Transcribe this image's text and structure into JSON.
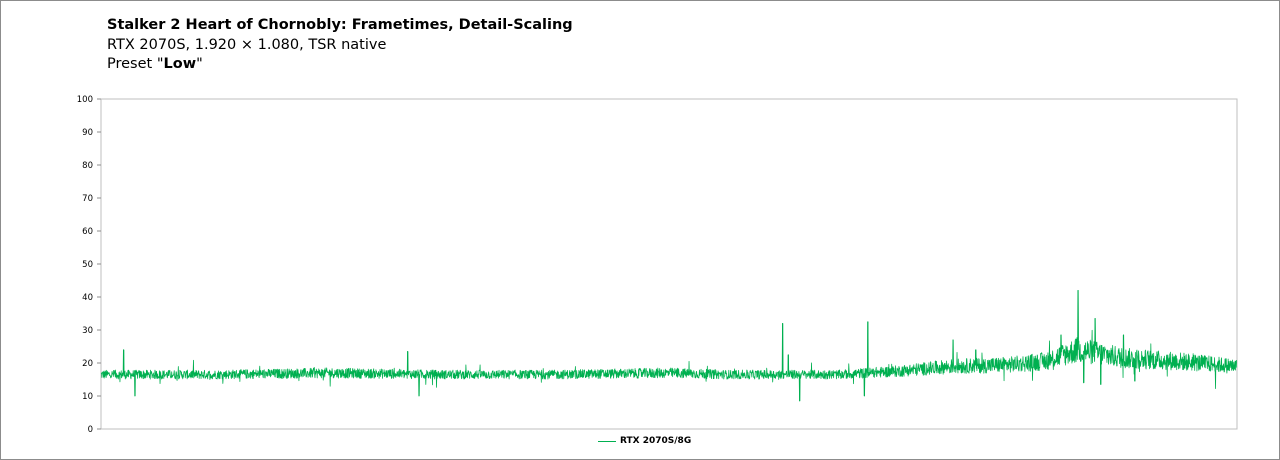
{
  "chart_data": {
    "type": "line",
    "title": "Stalker 2 Heart of Chornobly: Frametimes, Detail-Scaling",
    "subtitle": "RTX 2070S, 1.920 × 1.080, TSR native",
    "preset_prefix": "Preset \"",
    "preset_value": "Low",
    "preset_suffix": "\"",
    "ylim": [
      0,
      100
    ],
    "y_ticks": [
      "0",
      "10",
      "20",
      "30",
      "40",
      "50",
      "60",
      "70",
      "80",
      "90",
      "100"
    ],
    "grid": false,
    "legend_position": "bottom-center",
    "series": [
      {
        "name": "RTX 2070S/8G",
        "color": "#00b050",
        "profile_x": [
          0,
          0.05,
          0.1,
          0.2,
          0.3,
          0.4,
          0.5,
          0.55,
          0.6,
          0.65,
          0.7,
          0.75,
          0.8,
          0.83,
          0.86,
          0.9,
          0.95,
          1.0
        ],
        "profile_y": [
          16.5,
          16.5,
          16.5,
          17,
          16.5,
          16.5,
          17,
          16.5,
          16.5,
          16.5,
          17.5,
          19,
          19.5,
          20.5,
          24,
          21.5,
          20.5,
          19
        ],
        "spikes": [
          {
            "x": 0.02,
            "y": 24
          },
          {
            "x": 0.03,
            "y": 10
          },
          {
            "x": 0.27,
            "y": 23.5
          },
          {
            "x": 0.28,
            "y": 10
          },
          {
            "x": 0.605,
            "y": 22.5
          },
          {
            "x": 0.6,
            "y": 32
          },
          {
            "x": 0.615,
            "y": 8.5
          },
          {
            "x": 0.675,
            "y": 32.5
          },
          {
            "x": 0.672,
            "y": 10
          },
          {
            "x": 0.75,
            "y": 27
          },
          {
            "x": 0.77,
            "y": 24
          },
          {
            "x": 0.845,
            "y": 28.5
          },
          {
            "x": 0.86,
            "y": 42
          },
          {
            "x": 0.865,
            "y": 14
          },
          {
            "x": 0.875,
            "y": 33.5
          },
          {
            "x": 0.88,
            "y": 13.5
          },
          {
            "x": 0.9,
            "y": 28.5
          },
          {
            "x": 0.91,
            "y": 14.5
          }
        ]
      }
    ]
  }
}
